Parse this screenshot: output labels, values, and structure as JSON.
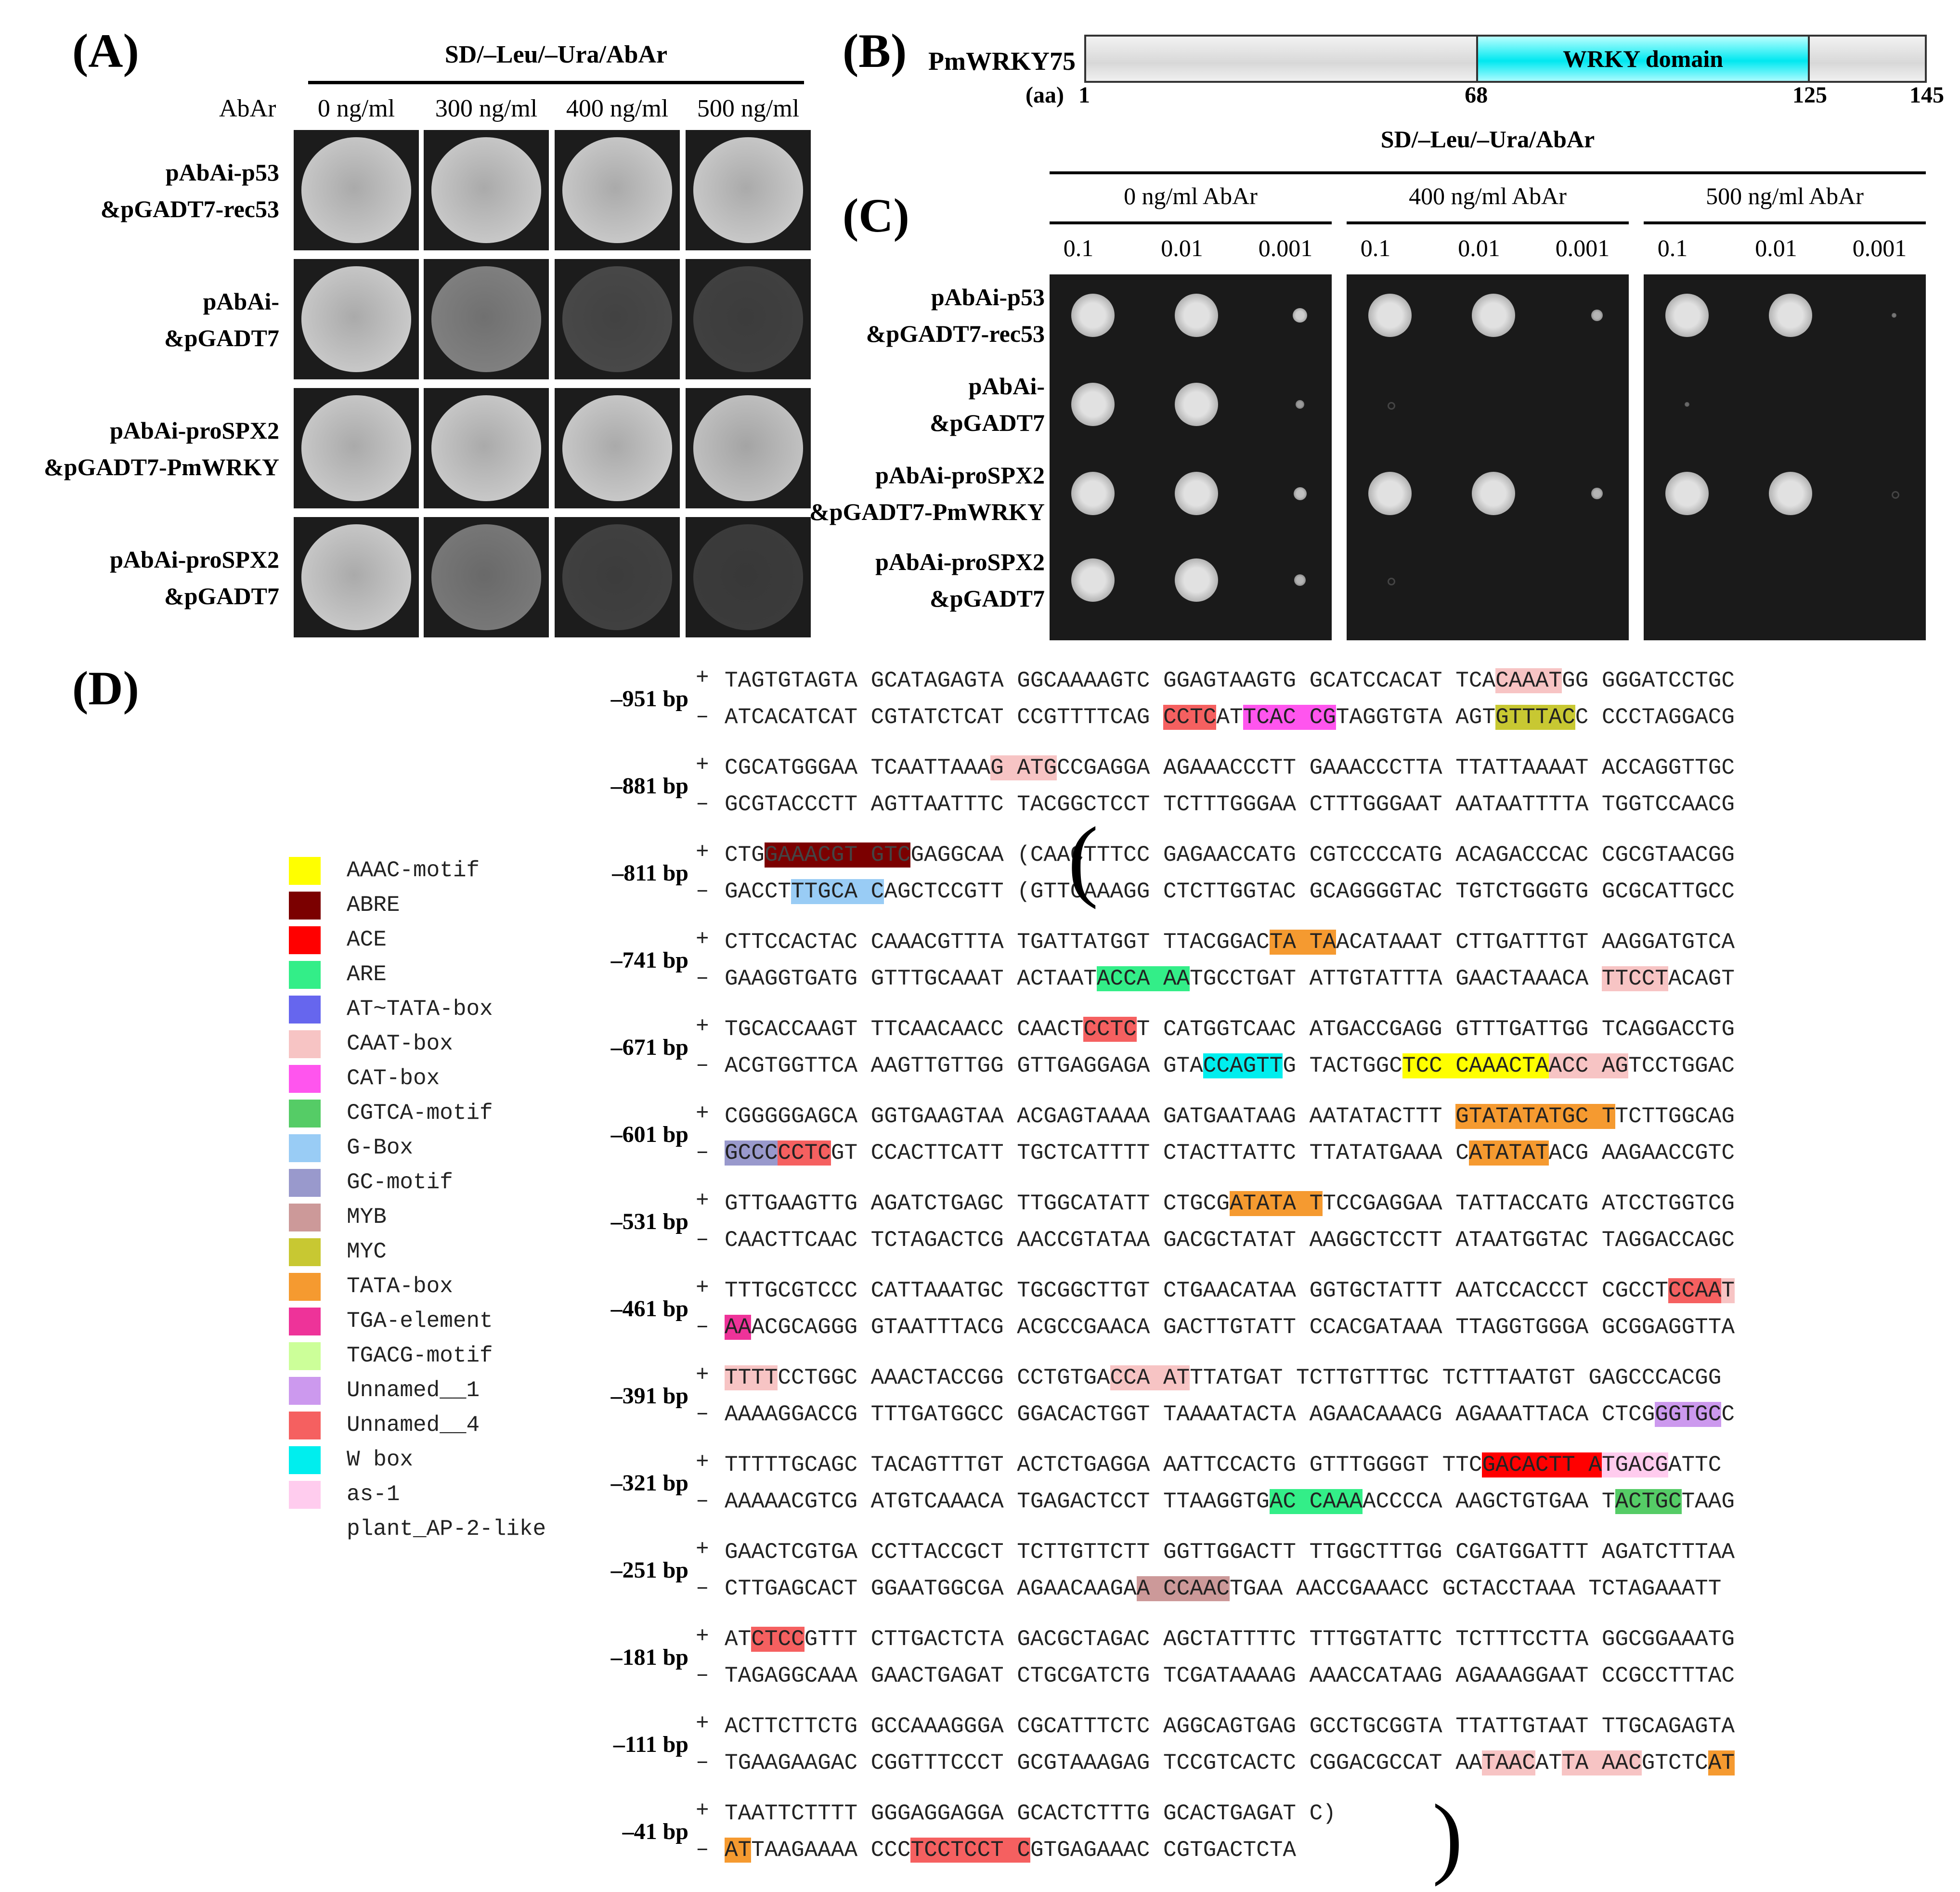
{
  "panelA": {
    "label": "(A)",
    "header": "SD/–Leu/–Ura/AbAr",
    "abar_label": "AbAr",
    "concentrations": [
      "0 ng/ml",
      "300 ng/ml",
      "400 ng/ml",
      "500 ng/ml"
    ],
    "rows": [
      {
        "line1": "pAbAi-p53",
        "line2": "&pGADT7-rec53",
        "growth": [
          1.0,
          1.0,
          1.0,
          1.0
        ]
      },
      {
        "line1": "pAbAi-",
        "line2": "&pGADT7",
        "growth": [
          1.0,
          0.55,
          0.2,
          0.15
        ]
      },
      {
        "line1": "pAbAi-proSPX2",
        "line2": "&pGADT7-PmWRKY",
        "growth": [
          1.0,
          1.0,
          1.0,
          0.95
        ]
      },
      {
        "line1": "pAbAi-proSPX2",
        "line2": "&pGADT7",
        "growth": [
          1.0,
          0.5,
          0.15,
          0.12
        ]
      }
    ]
  },
  "panelB": {
    "label": "(B)",
    "protein": "PmWRKY75",
    "domain_name": "WRKY domain",
    "aa_label": "(aa)",
    "length": 145,
    "domain_start": 68,
    "domain_end": 125,
    "ticks": [
      "1",
      "68",
      "125",
      "145"
    ],
    "tick_values": [
      1,
      68,
      125,
      145
    ]
  },
  "panelC": {
    "label": "(C)",
    "header": "SD/–Leu/–Ura/AbAr",
    "groups": [
      "0 ng/ml AbAr",
      "400 ng/ml AbAr",
      "500 ng/ml AbAr"
    ],
    "dilutions": [
      "0.1",
      "0.01",
      "0.001"
    ],
    "rows": [
      {
        "line1": "pAbAi-p53",
        "line2": "&pGADT7-rec53",
        "growth": [
          [
            1,
            1,
            0.5
          ],
          [
            1,
            1,
            0.4
          ],
          [
            1,
            1,
            0.15
          ]
        ]
      },
      {
        "line1": "pAbAi-",
        "line2": "&pGADT7",
        "growth": [
          [
            1,
            1,
            0.3
          ],
          [
            0.05,
            0,
            0
          ],
          [
            0.1,
            0,
            0
          ]
        ]
      },
      {
        "line1": "pAbAi-proSPX2",
        "line2": "&pGADT7-PmWRKY",
        "growth": [
          [
            1,
            1,
            0.45
          ],
          [
            1,
            1,
            0.4
          ],
          [
            1,
            1,
            0.05
          ]
        ]
      },
      {
        "line1": "pAbAi-proSPX2",
        "line2": "&pGADT7",
        "growth": [
          [
            1,
            1,
            0.4
          ],
          [
            0.03,
            0,
            0
          ],
          [
            0,
            0,
            0
          ]
        ]
      }
    ]
  },
  "panelD": {
    "label": "(D)",
    "legend": [
      {
        "name": "AAAC-motif",
        "color": "#ffff00"
      },
      {
        "name": "ABRE",
        "color": "#7b0000"
      },
      {
        "name": "ACE",
        "color": "#ff0000"
      },
      {
        "name": "ARE",
        "color": "#33ee88"
      },
      {
        "name": "AT~TATA-box",
        "color": "#6666ee"
      },
      {
        "name": "CAAT-box",
        "color": "#f7c4c4"
      },
      {
        "name": "CAT-box",
        "color": "#ff55ee"
      },
      {
        "name": "CGTCA-motif",
        "color": "#55cc66"
      },
      {
        "name": "G-Box",
        "color": "#99ccf5"
      },
      {
        "name": "GC-motif",
        "color": "#9999cc"
      },
      {
        "name": "MYB",
        "color": "#cc9999"
      },
      {
        "name": "MYC",
        "color": "#c8c832"
      },
      {
        "name": "TATA-box",
        "color": "#f59a30"
      },
      {
        "name": "TGA-element",
        "color": "#ee3399"
      },
      {
        "name": "TGACG-motif",
        "color": "#ccff99"
      },
      {
        "name": "Unnamed__1",
        "color": "#cc99ee"
      },
      {
        "name": "Unnamed__4",
        "color": "#f56060"
      },
      {
        "name": "W box",
        "color": "#00eeee"
      },
      {
        "name": "as-1",
        "color": "#ffccee"
      },
      {
        "name": "plant_AP-2-like",
        "color": ""
      }
    ],
    "blocks": [
      {
        "bp": "–951 bp",
        "plus": [
          [
            "TAGTGTAGTA GCATAGAGTA GGCAAAAGTC GGAGTAAGTG GCATCCACAT TCA",
            ""
          ],
          [
            "CAAAT",
            "#f7c4c4"
          ],
          [
            "GG GGGATCCTGC",
            ""
          ]
        ],
        "minus": [
          [
            "ATCACATCAT CGTATCTCAT CCGTTTTCAG ",
            ""
          ],
          [
            "CCTC",
            "#f56060"
          ],
          [
            "AT",
            ""
          ],
          [
            "TCAC CG",
            "#ff55ee"
          ],
          [
            "TAGGTGTA AGT",
            ""
          ],
          [
            "GTTTAC",
            "#c8c832"
          ],
          [
            "C CCCTAGGACG",
            ""
          ]
        ]
      },
      {
        "bp": "–881 bp",
        "plus": [
          [
            "CGCATGGGAA TCAATTAAA",
            ""
          ],
          [
            "G ATG",
            "#f7c4c4"
          ],
          [
            "CCGAGGA AGAAACCCTT GAAACCCTTA TTATTAAAAT ACCAGGTTGC",
            ""
          ]
        ],
        "minus": [
          [
            "GCGTACCCTT AGTTAATTTC TACGGCTCCT TCTTTGGGAA CTTTGGGAAT AATAATTTTA TGGTCCAACG",
            ""
          ]
        ]
      },
      {
        "bp": "–811 bp",
        "plus": [
          [
            "CTG",
            ""
          ],
          [
            "GAAACGT GTC",
            "#7b0000"
          ],
          [
            "GAGGCAA (CAACTTTCC GAGAACCATG CGTCCCCATG ACAGACCCAC CGCGTAACGG",
            ""
          ]
        ],
        "minus": [
          [
            "GACCT",
            ""
          ],
          [
            "TTGCA C",
            "#99ccf5"
          ],
          [
            "AGCTCCGTT (GTTGAAAGG CTCTTGGTAC GCAGGGGTAC TGTCTGGGTG GCGCATTGCC",
            ""
          ]
        ]
      },
      {
        "bp": "–741 bp",
        "plus": [
          [
            "CTTCCACTAC CAAACGTTTA TGATTATGGT TTACGGAC",
            ""
          ],
          [
            "TA TA",
            "#f59a30"
          ],
          [
            "ACATAAAT CTTGATTTGT AAGGATGTCA",
            ""
          ]
        ],
        "minus": [
          [
            "GAAGGTGATG GTTTGCAAAT ACTAAT",
            ""
          ],
          [
            "ACCA AA",
            "#33ee88"
          ],
          [
            "TGCCTGAT ATTGTATTTA GAACTAAACA ",
            ""
          ],
          [
            "TTCCT",
            "#f7c4c4"
          ],
          [
            "ACAGT",
            ""
          ]
        ]
      },
      {
        "bp": "–671 bp",
        "plus": [
          [
            "TGCACCAAGT TTCAACAACC CAACT",
            ""
          ],
          [
            "CCTC",
            "#f56060"
          ],
          [
            "T CATGGTCAAC ATGACCGAGG GTTTGATTGG TCAGGACCTG",
            ""
          ]
        ],
        "minus": [
          [
            "ACGTGGTTCA AAGTTGTTGG GTTGAGGAGA GTA",
            ""
          ],
          [
            "CCAGTT",
            "#00eeee"
          ],
          [
            "G TACTGGC",
            ""
          ],
          [
            "TCC CAAACTA",
            "#ffff00"
          ],
          [
            "ACC AG",
            "#f7c4c4"
          ],
          [
            "TCCTGGAC",
            ""
          ]
        ]
      },
      {
        "bp": "–601 bp",
        "plus": [
          [
            "CGGGGGAGCA GGTGAAGTAA ACGAGTAAAA GATGAATAAG AATATACTTT ",
            ""
          ],
          [
            "GTATATATGC T",
            "#f59a30"
          ],
          [
            "TCTTGGCAG",
            ""
          ]
        ],
        "minus": [
          [
            "GCCC",
            "#9999cc"
          ],
          [
            "CCTC",
            "#f56060"
          ],
          [
            "GT CCACTTCATT TGCTCATTTT CTACTTATTC TTATATGAAA C",
            ""
          ],
          [
            "ATATAT",
            "#f59a30"
          ],
          [
            "ACG AAGAACCGTC",
            ""
          ]
        ]
      },
      {
        "bp": "–531 bp",
        "plus": [
          [
            "GTTGAAGTTG AGATCTGAGC TTGGCATATT CTGCG",
            ""
          ],
          [
            "ATATA T",
            "#f59a30"
          ],
          [
            "TCCGAGGAA TATTACCATG ATCCTGGTCG",
            ""
          ]
        ],
        "minus": [
          [
            "CAACTTCAAC TCTAGACTCG AACCGTATAA GACGCTATAT AAGGCTCCTT ATAATGGTAC TAGGACCAGC",
            ""
          ]
        ]
      },
      {
        "bp": "–461 bp",
        "plus": [
          [
            "TTTGCGTCCC CATTAAATGC TGCGGCTTGT CTGAACATAA GGTGCTATTT AATCCACCCT CGCCT",
            ""
          ],
          [
            "CCAA",
            "#f56060"
          ],
          [
            "T",
            "#f7c4c4"
          ]
        ],
        "minus": [
          [
            "AA",
            "#ee3399"
          ],
          [
            "ACGCAGGG GTAATTTACG ACGCCGAACA GACTTGTATT CCACGATAAA TTAGGTGGGA GCGGAGGTTA",
            ""
          ]
        ]
      },
      {
        "bp": "–391 bp",
        "plus": [
          [
            "TTTT",
            "#f7c4c4"
          ],
          [
            "CCTGGC AAACTACCGG CCTGTGA",
            ""
          ],
          [
            "CCA AT",
            "#f7c4c4"
          ],
          [
            "TTATGAT TCTTGTTTGC TCTTTAATGT GAGCCCACGG",
            ""
          ]
        ],
        "minus": [
          [
            "AAAAGGACCG TTTGATGGCC GGACACTGGT TAAAATACTA AGAACAAACG AGAAATTACA CTCG",
            ""
          ],
          [
            "GGTGC",
            "#cc99ee"
          ],
          [
            "C",
            ""
          ]
        ]
      },
      {
        "bp": "–321 bp",
        "plus": [
          [
            "TTTTTGCAGC TACAGTTTGT ACTCTGAGGA AATTCCACTG GTTTGGGGT TTC",
            ""
          ],
          [
            "GACACTT A",
            "#ff0000"
          ],
          [
            "TGACG",
            "#ffccee"
          ],
          [
            "ATTC",
            ""
          ]
        ],
        "minus": [
          [
            "AAAAACGTCG ATGTCAAACA TGAGACTCCT TTAAGGTG",
            ""
          ],
          [
            "AC CAAA",
            "#33ee88"
          ],
          [
            "ACCCCA AAGCTGTGAA T",
            ""
          ],
          [
            "ACTGC",
            "#55cc66"
          ],
          [
            "TAAG",
            ""
          ]
        ]
      },
      {
        "bp": "–251 bp",
        "plus": [
          [
            "GAACTCGTGA CCTTACCGCT TCTTGTTCTT GGTTGGACTT TTGGCTTTGG CGATGGATTT AGATCTTTAA",
            ""
          ]
        ],
        "minus": [
          [
            "CTTGAGCACT GGAATGGCGA AGAACAAGA",
            ""
          ],
          [
            "A CCAAC",
            "#cc9999"
          ],
          [
            "TGAA AACCGAAACC GCTACCTAAA TCTAGAAATT",
            ""
          ]
        ]
      },
      {
        "bp": "–181 bp",
        "plus": [
          [
            "AT",
            ""
          ],
          [
            "CTCC",
            "#f56060"
          ],
          [
            "GTTT CTTGACTCTA GACGCTAGAC AGCTATTTTC TTTGGTATTC TCTTTCCTTA GGCGGAAATG",
            ""
          ]
        ],
        "minus": [
          [
            "TAGAGGCAAA GAACTGAGAT CTGCGATCTG TCGATAAAAG AAACCATAAG AGAAAGGAAT CCGCCTTTAC",
            ""
          ]
        ]
      },
      {
        "bp": "–111 bp",
        "plus": [
          [
            "ACTTCTTCTG GCCAAAGGGA CGCATTTCTC AGGCAGTGAG GCCTGCGGTA TTATTGTAAT TTGCAGAGTA",
            ""
          ]
        ],
        "minus": [
          [
            "TGAAGAAGAC CGGTTTCCCT GCGTAAAGAG TCCGTCACTC CGGACGCCAT AA",
            ""
          ],
          [
            "TAAC",
            "#f7c4c4"
          ],
          [
            "AT",
            ""
          ],
          [
            "TA AAC",
            "#f7c4c4"
          ],
          [
            "GTCTC",
            ""
          ],
          [
            "AT",
            "#f59a30"
          ]
        ]
      },
      {
        "bp": "–41 bp",
        "plus": [
          [
            "TAATTCTTTT GGGAGGAGGA GCACTCTTTG GCACTGAGAT C)",
            ""
          ]
        ],
        "minus": [
          [
            "AT",
            "#f59a30"
          ],
          [
            "TAAGAAAA CCC",
            ""
          ],
          [
            "TCCTCCT C",
            "#f56060"
          ],
          [
            "GTGAGAAAC CGTGACTCTA",
            ""
          ]
        ]
      }
    ]
  }
}
